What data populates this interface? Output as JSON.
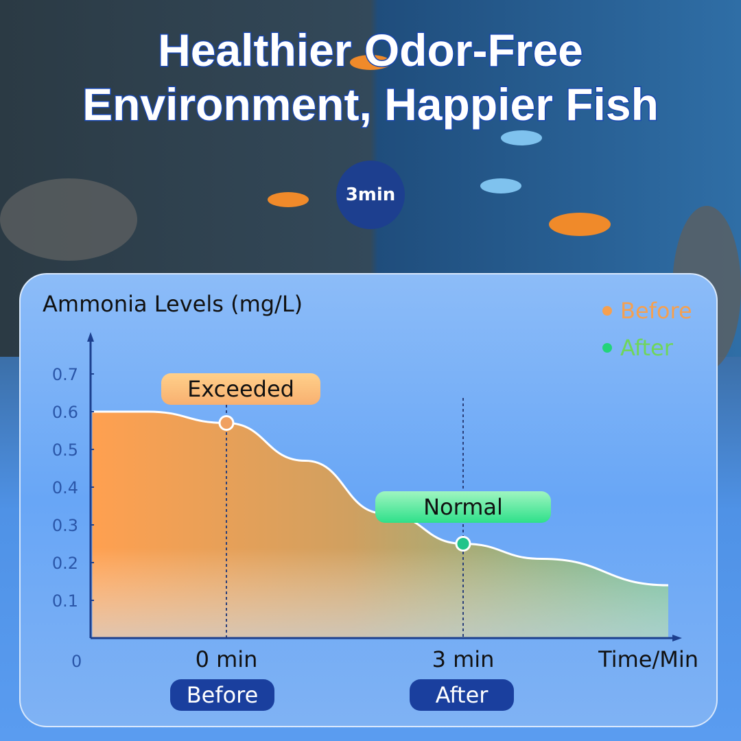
{
  "title": {
    "line1": "Healthier Odor-Free",
    "line2": "Environment, Happier Fish"
  },
  "badge": "3min",
  "colors": {
    "before": "#f5a050",
    "after": "#22d47a",
    "title_stroke": "#1746b0",
    "axis": "#1c3f8e"
  },
  "chart_data": {
    "type": "area",
    "title": "Ammonia Levels (mg/L)",
    "xlabel": "Time/Min",
    "origin_label": "0",
    "ylim": [
      0,
      0.8
    ],
    "y_ticks": [
      "0.1",
      "0.2",
      "0.3",
      "0.4",
      "0.5",
      "0.6",
      "0.7"
    ],
    "x_ticks": [
      {
        "x": 0,
        "label": "0 min"
      },
      {
        "x": 3,
        "label": "3 min"
      }
    ],
    "curve": [
      {
        "x": -1.7,
        "y": 0.6
      },
      {
        "x": -1,
        "y": 0.6
      },
      {
        "x": 0,
        "y": 0.57
      },
      {
        "x": 1,
        "y": 0.47
      },
      {
        "x": 2,
        "y": 0.33
      },
      {
        "x": 3,
        "y": 0.25
      },
      {
        "x": 4,
        "y": 0.21
      },
      {
        "x": 5.6,
        "y": 0.14
      }
    ],
    "markers": [
      {
        "x": 0,
        "y": 0.57,
        "label": "Exceeded",
        "state": "Before"
      },
      {
        "x": 3,
        "y": 0.25,
        "label": "Normal",
        "state": "After"
      }
    ],
    "legend": [
      {
        "name": "Before",
        "color": "#f5a050"
      },
      {
        "name": "After",
        "color": "#22d47a"
      }
    ],
    "legend_position": "top-right",
    "grid": false
  }
}
